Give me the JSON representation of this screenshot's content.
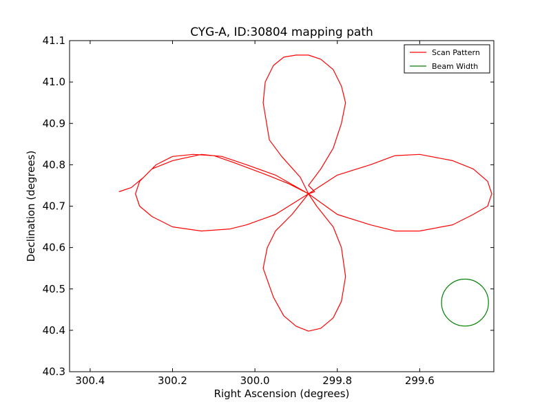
{
  "chart_data": {
    "type": "line",
    "title": "CYG-A, ID:30804 mapping path",
    "xlabel": "Right Ascension (degrees)",
    "ylabel": "Declination (degrees)",
    "xlim": [
      300.45,
      299.42
    ],
    "ylim": [
      40.3,
      41.1
    ],
    "x_inverted": true,
    "xticks": [
      300.4,
      300.2,
      300.0,
      299.8,
      299.6
    ],
    "xtick_labels": [
      "300.4",
      "300.2",
      "300.0",
      "299.8",
      "299.6"
    ],
    "yticks": [
      40.3,
      40.4,
      40.5,
      40.6,
      40.7,
      40.8,
      40.9,
      41.0,
      41.1
    ],
    "ytick_labels": [
      "40.3",
      "40.4",
      "40.5",
      "40.6",
      "40.7",
      "40.8",
      "40.9",
      "41.0",
      "41.1"
    ],
    "grid": false,
    "legend_position": "top-right",
    "series": [
      {
        "name": "Scan Pattern",
        "color": "#ff0000",
        "x": [
          299.87,
          299.8,
          299.72,
          299.66,
          299.6,
          299.52,
          299.47,
          299.435,
          299.425,
          299.435,
          299.47,
          299.52,
          299.6,
          299.66,
          299.72,
          299.8,
          299.87,
          299.85,
          299.81,
          299.79,
          299.78,
          299.79,
          299.81,
          299.84,
          299.87,
          299.9,
          299.93,
          299.955,
          299.98,
          299.97,
          299.95,
          299.91,
          299.87,
          299.95,
          300.02,
          300.08,
          300.13,
          300.2,
          300.25,
          300.28,
          300.29,
          300.28,
          300.25,
          300.2,
          300.13,
          300.06,
          300.02,
          299.95,
          299.87,
          299.89,
          299.935,
          299.965,
          299.98,
          299.975,
          299.955,
          299.93,
          299.9,
          299.87,
          299.84,
          299.81,
          299.79,
          299.78,
          299.79,
          299.81,
          299.84,
          299.87,
          299.86,
          299.855,
          299.87,
          299.92,
          299.97,
          300.05,
          300.1,
          300.15,
          300.2,
          300.24,
          300.27,
          300.3,
          300.33
        ],
        "y": [
          40.73,
          40.68,
          40.655,
          40.64,
          40.64,
          40.655,
          40.68,
          40.7,
          40.73,
          40.76,
          40.79,
          40.81,
          40.825,
          40.822,
          40.8,
          40.775,
          40.73,
          40.7,
          40.65,
          40.6,
          40.53,
          40.47,
          40.43,
          40.405,
          40.398,
          40.41,
          40.435,
          40.48,
          40.55,
          40.6,
          40.64,
          40.68,
          40.73,
          40.775,
          40.8,
          40.82,
          40.825,
          40.81,
          40.79,
          40.76,
          40.73,
          40.7,
          40.675,
          40.65,
          40.64,
          40.645,
          40.655,
          40.68,
          40.73,
          40.77,
          40.82,
          40.86,
          40.95,
          41.0,
          41.04,
          41.06,
          41.065,
          41.065,
          41.055,
          41.03,
          40.99,
          40.95,
          40.9,
          40.84,
          40.79,
          40.75,
          40.74,
          40.735,
          40.73,
          40.755,
          40.775,
          40.805,
          40.822,
          40.825,
          40.82,
          40.8,
          40.77,
          40.745,
          40.735
        ]
      },
      {
        "name": "Beam Width",
        "color": "#008000",
        "shape": "circle",
        "center": [
          299.49,
          40.467
        ],
        "radius_deg": 0.057
      }
    ]
  }
}
